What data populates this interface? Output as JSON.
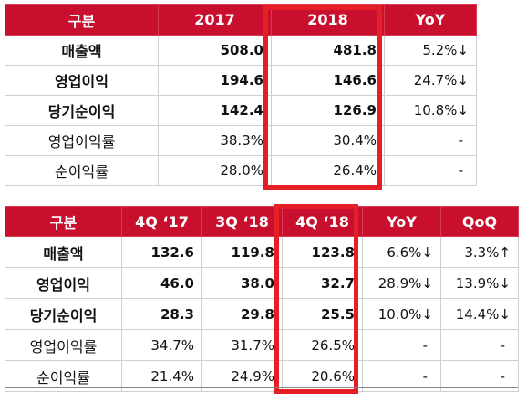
{
  "table_annual": {
    "headers": [
      "구분",
      "2017",
      "2018",
      "YoY"
    ],
    "rows": [
      {
        "label": "매출액",
        "v2017": "508.0",
        "v2018": "481.8",
        "yoy": "5.2%↓"
      },
      {
        "label": "영업이익",
        "v2017": "194.6",
        "v2018": "146.6",
        "yoy": "24.7%↓"
      },
      {
        "label": "당기순이익",
        "v2017": "142.4",
        "v2018": "126.9",
        "yoy": "10.8%↓"
      },
      {
        "label": "영업이익률",
        "v2017": "38.3%",
        "v2018": "30.4%",
        "yoy": "-"
      },
      {
        "label": "순이익률",
        "v2017": "28.0%",
        "v2018": "26.4%",
        "yoy": "-"
      }
    ]
  },
  "table_quarterly": {
    "headers": [
      "구분",
      "4Q ‘17",
      "3Q ‘18",
      "4Q ‘18",
      "YoY",
      "QoQ"
    ],
    "rows": [
      {
        "label": "매출액",
        "q4_17": "132.6",
        "q3_18": "119.8",
        "q4_18": "123.8",
        "yoy": "6.6%↓",
        "qoq": "3.3%↑"
      },
      {
        "label": "영업이익",
        "q4_17": "46.0",
        "q3_18": "38.0",
        "q4_18": "32.7",
        "yoy": "28.9%↓",
        "qoq": "13.9%↓"
      },
      {
        "label": "당기순이익",
        "q4_17": "28.3",
        "q3_18": "29.8",
        "q4_18": "25.5",
        "yoy": "10.0%↓",
        "qoq": "14.4%↓"
      },
      {
        "label": "영업이익률",
        "q4_17": "34.7%",
        "q3_18": "31.7%",
        "q4_18": "26.5%",
        "yoy": "-",
        "qoq": "-"
      },
      {
        "label": "순이익률",
        "q4_17": "21.4%",
        "q3_18": "24.9%",
        "q4_18": "20.6%",
        "yoy": "-",
        "qoq": "-"
      }
    ]
  },
  "colors": {
    "header_bg": "#c8102e",
    "highlight_border": "#e41f26"
  }
}
